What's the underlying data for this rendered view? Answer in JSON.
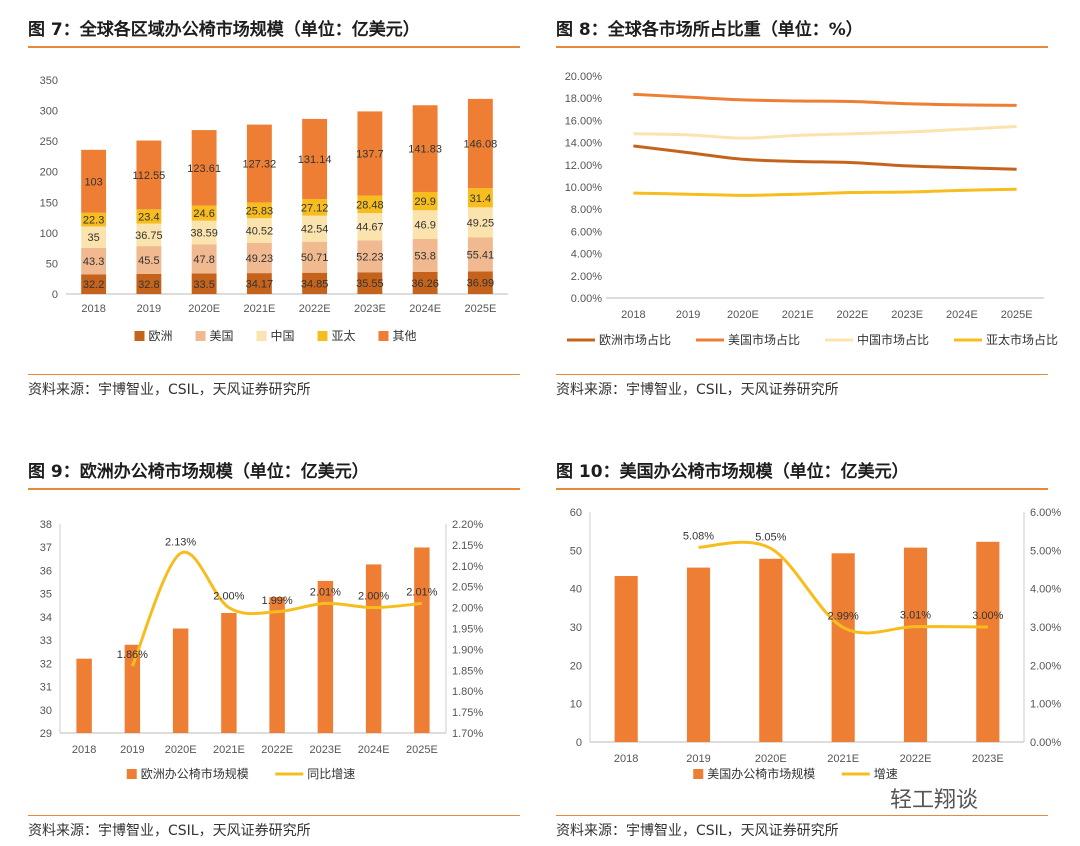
{
  "panels": [
    {
      "title": "图 7：全球各区域办公椅市场规模（单位：亿美元）",
      "source": "资料来源：宇博智业，CSIL，天风证券研究所"
    },
    {
      "title": "图 8：全球各市场所占比重（单位：%）",
      "source": "资料来源：宇博智业，CSIL，天风证券研究所"
    },
    {
      "title": "图 9：欧洲办公椅市场规模（单位：亿美元）",
      "source": "资料来源：宇博智业，CSIL，天风证券研究所"
    },
    {
      "title": "图 10：美国办公椅市场规模（单位：亿美元）",
      "source": "资料来源：宇博智业，CSIL，天风证券研究所"
    }
  ],
  "watermark": "轻工翔谈",
  "chart_data": [
    {
      "type": "bar",
      "stacked": true,
      "categories": [
        "2018",
        "2019",
        "2020E",
        "2021E",
        "2022E",
        "2023E",
        "2024E",
        "2025E"
      ],
      "ylim": [
        0,
        350
      ],
      "yticks": [
        0,
        50,
        100,
        150,
        200,
        250,
        300,
        350
      ],
      "series": [
        {
          "name": "欧洲",
          "color": "#c5631c",
          "values": [
            32.2,
            32.8,
            33.5,
            34.17,
            34.85,
            35.55,
            36.26,
            36.99
          ]
        },
        {
          "name": "美国",
          "color": "#f0b98f",
          "values": [
            43.3,
            45.5,
            47.8,
            49.23,
            50.71,
            52.23,
            53.8,
            55.41
          ]
        },
        {
          "name": "中国",
          "color": "#fbe3ad",
          "values": [
            35,
            36.75,
            38.59,
            40.52,
            42.54,
            44.67,
            46.9,
            49.25
          ]
        },
        {
          "name": "亚太",
          "color": "#f7bd1f",
          "values": [
            22.3,
            23.4,
            24.6,
            25.83,
            27.12,
            28.48,
            29.9,
            31.4
          ]
        },
        {
          "name": "其他",
          "color": "#ee7e34",
          "values": [
            103,
            112.55,
            123.61,
            127.32,
            131.14,
            137.7,
            141.83,
            146.08
          ]
        }
      ],
      "legend": "bottom"
    },
    {
      "type": "line",
      "categories": [
        "2018",
        "2019",
        "2020E",
        "2021E",
        "2022E",
        "2023E",
        "2024E",
        "2025E"
      ],
      "ylim": [
        0,
        20
      ],
      "yticks": [
        "0.00%",
        "2.00%",
        "4.00%",
        "6.00%",
        "8.00%",
        "10.00%",
        "12.00%",
        "14.00%",
        "16.00%",
        "18.00%",
        "20.00%"
      ],
      "series": [
        {
          "name": "欧洲市场占比",
          "color": "#c5631c",
          "values": [
            13.7,
            13.1,
            12.5,
            12.3,
            12.2,
            11.9,
            11.75,
            11.6
          ]
        },
        {
          "name": "美国市场占比",
          "color": "#ee7e34",
          "values": [
            18.35,
            18.1,
            17.85,
            17.75,
            17.7,
            17.5,
            17.4,
            17.35
          ]
        },
        {
          "name": "中国市场占比",
          "color": "#fbe3ad",
          "values": [
            14.8,
            14.7,
            14.4,
            14.65,
            14.8,
            14.95,
            15.2,
            15.45
          ]
        },
        {
          "name": "亚太市场占比",
          "color": "#f7bd1f",
          "values": [
            9.45,
            9.35,
            9.25,
            9.35,
            9.5,
            9.55,
            9.7,
            9.8
          ]
        }
      ],
      "legend": "bottom"
    },
    {
      "type": "bar+line",
      "categories": [
        "2018",
        "2019",
        "2020E",
        "2021E",
        "2022E",
        "2023E",
        "2024E",
        "2025E"
      ],
      "ylim": [
        29,
        38
      ],
      "yticks": [
        29,
        30,
        31,
        32,
        33,
        34,
        35,
        36,
        37,
        38
      ],
      "y2lim": [
        1.7,
        2.2
      ],
      "y2ticks": [
        "1.70%",
        "1.75%",
        "1.80%",
        "1.85%",
        "1.90%",
        "1.95%",
        "2.00%",
        "2.05%",
        "2.10%",
        "2.15%",
        "2.20%"
      ],
      "bars": {
        "name": "欧洲办公椅市场规模",
        "color": "#ee7e34",
        "values": [
          32.2,
          32.8,
          33.5,
          34.17,
          34.85,
          35.55,
          36.26,
          36.99
        ]
      },
      "line": {
        "name": "同比增速",
        "color": "#f7bd1f",
        "values": [
          null,
          1.86,
          2.13,
          2.0,
          1.99,
          2.01,
          2.0,
          2.01
        ],
        "labels": [
          null,
          "1.86%",
          "2.13%",
          "2.00%",
          "1.99%",
          "2.01%",
          "2.00%",
          "2.01%"
        ]
      },
      "legend": "bottom"
    },
    {
      "type": "bar+line",
      "categories": [
        "2018",
        "2019",
        "2020E",
        "2021E",
        "2022E",
        "2023E"
      ],
      "ylim": [
        0,
        60
      ],
      "yticks": [
        0,
        10,
        20,
        30,
        40,
        50,
        60
      ],
      "y2lim": [
        0,
        6
      ],
      "y2ticks": [
        "0.00%",
        "1.00%",
        "2.00%",
        "3.00%",
        "4.00%",
        "5.00%",
        "6.00%"
      ],
      "bars": {
        "name": "美国办公椅市场规模",
        "color": "#ee7e34",
        "values": [
          43.3,
          45.5,
          47.8,
          49.23,
          50.71,
          52.23
        ]
      },
      "line": {
        "name": "增速",
        "color": "#f7bd1f",
        "values": [
          null,
          5.08,
          5.05,
          2.99,
          3.01,
          3.0
        ],
        "labels": [
          null,
          "5.08%",
          "5.05%",
          "2.99%",
          "3.01%",
          "3.00%"
        ]
      },
      "legend": "bottom"
    }
  ]
}
